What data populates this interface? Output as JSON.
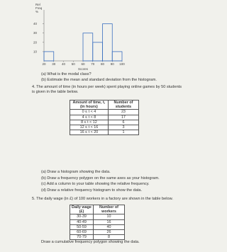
{
  "figure": {
    "y_label": [
      "Rel",
      "Freq",
      "%"
    ],
    "x_label": "Scores",
    "xlim": [
      20,
      100
    ],
    "ylim": [
      0,
      55
    ],
    "xticks": [
      20,
      30,
      40,
      50,
      60,
      70,
      80,
      90,
      100
    ],
    "yticks": [
      10,
      20,
      30,
      40
    ],
    "bins": [
      20,
      30,
      40,
      50,
      60,
      70,
      80,
      90,
      100
    ],
    "values": [
      10,
      0,
      0,
      0,
      30,
      20,
      40,
      10
    ]
  },
  "q3": {
    "parts": [
      "(a) What is the modal class?",
      "(b) Estimate the mean and standard deviation from the histogram."
    ]
  },
  "q4": {
    "text": "4. The amount of time (in hours per week) spent playing online games by 50 students is given in the table below.",
    "table": {
      "headers": [
        "Amount of time, t, (in hours)",
        "Number of students"
      ],
      "rows": [
        [
          "0 ≤ t < 4",
          23
        ],
        [
          "4 ≤ t < 8",
          17
        ],
        [
          "8 ≤ t < 12",
          6
        ],
        [
          "12 ≤ t < 16",
          3
        ],
        [
          "16 ≤ t < 20",
          1
        ]
      ]
    },
    "parts": [
      "(a) Draw a histogram showing the data.",
      "(b) Draw a frequency polygon on the same axes as your histogram.",
      "(c) Add a column to your table showing the relative frequency.",
      "(d) Draw a relative frequency histogram to show the data."
    ]
  },
  "q5": {
    "text": "5. The daily wage (in £) of 100 workers in a factory are shown in the table below.",
    "table": {
      "headers": [
        "Daily wage (£)",
        "Number of workers"
      ],
      "rows": [
        [
          "30-39",
          10
        ],
        [
          "40-49",
          16
        ],
        [
          "50-59",
          40
        ],
        [
          "60-69",
          26
        ],
        [
          "70-79",
          8
        ]
      ]
    },
    "instruction": "Draw a cumulative frequency polygon showing the data."
  }
}
